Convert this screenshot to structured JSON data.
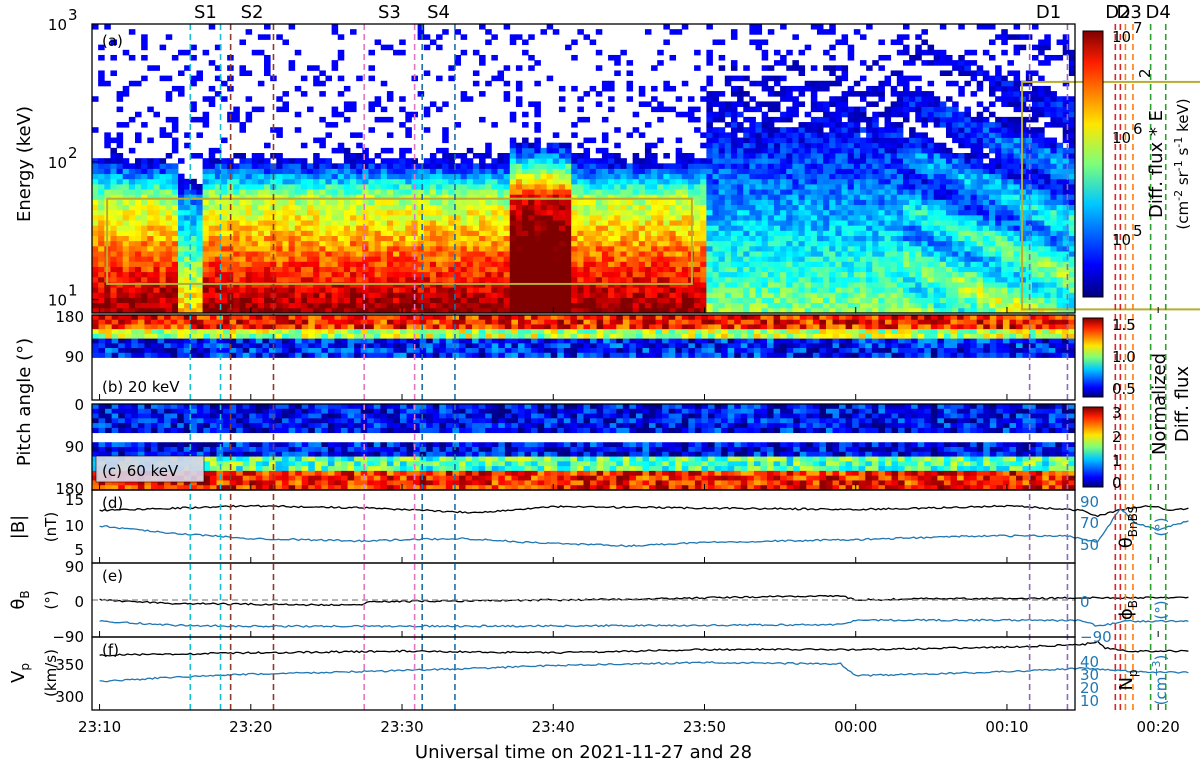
{
  "figure": {
    "xlabel": "Universal time on 2021-11-27 and 28",
    "xticks": [
      "23:10",
      "23:20",
      "23:30",
      "23:40",
      "23:50",
      "00:00",
      "00:10",
      "00:20"
    ]
  },
  "chart_data": [
    {
      "type": "heatmap",
      "panel_label": "(a)",
      "ylabel": "Energy (keV)",
      "yscale": "log",
      "ylim": [
        8,
        1000
      ],
      "yticks": [
        "10",
        "10",
        "10"
      ],
      "ytick_exponents": [
        "1",
        "2",
        "3"
      ],
      "colorbar": {
        "label": "Diff. flux * E",
        "label_sup": "2",
        "units_main": "(cm",
        "units_parts": [
          "-2",
          " sr",
          "-1",
          " s",
          "-1",
          " keV)"
        ],
        "scale": "log",
        "range": [
          30000,
          10000000
        ],
        "ticks": [
          "10",
          "10",
          "10"
        ],
        "tick_exponents": [
          "5",
          "6",
          "7"
        ],
        "colormap": "jet"
      },
      "boxes": [
        {
          "t_start": "23:10:30",
          "t_end": "23:49:10",
          "e_low": 13,
          "e_high": 54,
          "color": "#b8ad32"
        },
        {
          "t_start": "00:11:00",
          "t_end": "00:24:00",
          "e_low": 8.5,
          "e_high": 380,
          "color": "#b8ad32"
        }
      ],
      "events": [
        {
          "label": "S1",
          "color": "#17becf",
          "times": [
            "23:16:00",
            "23:18:00"
          ]
        },
        {
          "label": "S2",
          "color": "#8c3b2a",
          "times": [
            "23:18:40",
            "23:21:30"
          ]
        },
        {
          "label": "S3",
          "color": "#e377c2",
          "times": [
            "23:27:30",
            "23:30:50"
          ]
        },
        {
          "label": "S4",
          "color": "#1f6fa8",
          "times": [
            "23:31:20",
            "23:33:30"
          ]
        },
        {
          "label": "D1",
          "color": "#9467bd",
          "times": [
            "00:11:30",
            "00:14:00"
          ]
        },
        {
          "label": "D2",
          "color": "#d62728",
          "times": [
            "00:17:10",
            "00:17:30"
          ]
        },
        {
          "label": "D3",
          "color": "#ff7f0e",
          "times": [
            "00:17:50",
            "00:18:20"
          ]
        },
        {
          "label": "D4",
          "color": "#2ca02c",
          "times": [
            "00:19:30",
            "00:20:30"
          ]
        }
      ]
    },
    {
      "type": "heatmap",
      "panel_label": "(b) 20 keV",
      "ylabel": "Pitch angle (°)",
      "ylim": [
        0,
        180
      ],
      "yticks": [
        "180",
        "90"
      ],
      "colorbar": {
        "range": [
          0.5,
          1.5
        ],
        "ticks": [
          "1.5",
          "1.0",
          "0.5"
        ],
        "colormap": "jet"
      },
      "shared_colorbar_label": [
        "Normalized",
        "Diff. flux"
      ]
    },
    {
      "type": "heatmap",
      "panel_label": "(c) 60 keV",
      "ylabel": "Pitch angle (°)",
      "ylim": [
        0,
        180
      ],
      "yticks": [
        "0",
        "90",
        "180"
      ],
      "colorbar": {
        "range": [
          0,
          3
        ],
        "ticks": [
          "3",
          "2",
          "1",
          "0"
        ],
        "colormap": "jet"
      }
    },
    {
      "type": "line",
      "panel_label": "(d)",
      "ylabel": "|B|",
      "ylabel_unit": "(nT)",
      "ylim": [
        2,
        17
      ],
      "yticks": [
        "15",
        "10",
        "5"
      ],
      "y2label": "θ",
      "y2label_sub": "BnBS",
      "y2label_unit": "(°)",
      "y2lim": [
        40,
        95
      ],
      "y2ticks": [
        "90",
        "70",
        "50"
      ],
      "series": [
        {
          "name": "|B|",
          "axis": "left",
          "color": "#000000",
          "x_min": [
            0,
            10,
            18,
            25,
            30,
            40,
            50,
            55,
            60,
            64,
            65,
            66,
            68,
            69.5,
            71,
            72
          ],
          "y": [
            13.0,
            14.0,
            13.5,
            12.5,
            13.8,
            13.5,
            13.2,
            13.5,
            14.0,
            13.2,
            13.0,
            11.8,
            13.5,
            14.0,
            13.0,
            13.5
          ]
        },
        {
          "name": "θBnBS",
          "axis": "right",
          "color": "#1f77b4",
          "x_min": [
            0,
            5,
            10,
            17,
            24,
            28,
            35,
            40,
            50,
            58,
            64,
            66,
            67.5,
            68.5,
            70,
            72
          ],
          "y": [
            68,
            62,
            58,
            56,
            58,
            55,
            52,
            55,
            57,
            60,
            60,
            55,
            82,
            70,
            65,
            72
          ]
        }
      ]
    },
    {
      "type": "line",
      "panel_label": "(e)",
      "ylabel": "θ",
      "ylabel_sub": "B",
      "ylabel_unit": "(°)",
      "ylim": [
        -100,
        100
      ],
      "yticks": [
        "90",
        "0",
        "−90"
      ],
      "y2label": "ϕ",
      "y2label_sub": "B",
      "y2label_unit": "(°)",
      "y2lim": [
        -200,
        200
      ],
      "y2ticks": [
        "0",
        "−90"
      ],
      "series": [
        {
          "name": "θB",
          "axis": "left",
          "color": "#000000",
          "x_min": [
            0,
            5,
            10,
            17,
            18,
            25,
            35,
            45,
            49,
            50,
            55,
            60,
            65,
            72
          ],
          "y": [
            0,
            -10,
            -12,
            -15,
            -5,
            -2,
            2,
            10,
            12,
            0,
            4,
            4,
            6,
            8
          ]
        },
        {
          "name": "ϕB",
          "axis": "right",
          "color": "#1f77b4",
          "x_min": [
            0,
            5,
            10,
            20,
            30,
            40,
            49,
            50,
            60,
            65,
            66,
            68,
            72
          ],
          "y": [
            -120,
            -145,
            -150,
            -150,
            -148,
            -145,
            -140,
            -115,
            -115,
            -118,
            -150,
            -120,
            -122
          ]
        }
      ],
      "reference_line": {
        "y": 0,
        "style": "dashed",
        "color": "#888888"
      }
    },
    {
      "type": "line",
      "panel_label": "(f)",
      "ylabel": "V",
      "ylabel_sub": "p",
      "ylabel_unit": "(km/s)",
      "ylim": [
        290,
        375
      ],
      "yticks": [
        "350",
        "300"
      ],
      "y2label": "N",
      "y2label_sub": "p",
      "y2label_unit": "(cm",
      "y2label_unit_sup": "−3",
      "y2label_unit_end": ")",
      "y2lim": [
        8,
        55
      ],
      "y2ticks": [
        "40",
        "30",
        "20",
        "10"
      ],
      "series": [
        {
          "name": "Vp",
          "axis": "left",
          "color": "#000000",
          "x_min": [
            0,
            10,
            20,
            30,
            40,
            50,
            60,
            65,
            66,
            66.5,
            68,
            72
          ],
          "y": [
            355,
            358,
            360,
            358,
            362,
            362,
            365,
            368,
            372,
            364,
            360,
            360
          ]
        },
        {
          "name": "Np",
          "axis": "right",
          "color": "#1f77b4",
          "x_min": [
            0,
            5,
            10,
            18,
            25,
            30,
            40,
            49,
            50,
            58,
            65,
            68,
            72
          ],
          "y": [
            26,
            29,
            31,
            33,
            35,
            37,
            39,
            38,
            30,
            32,
            35,
            33,
            32
          ]
        }
      ]
    }
  ]
}
